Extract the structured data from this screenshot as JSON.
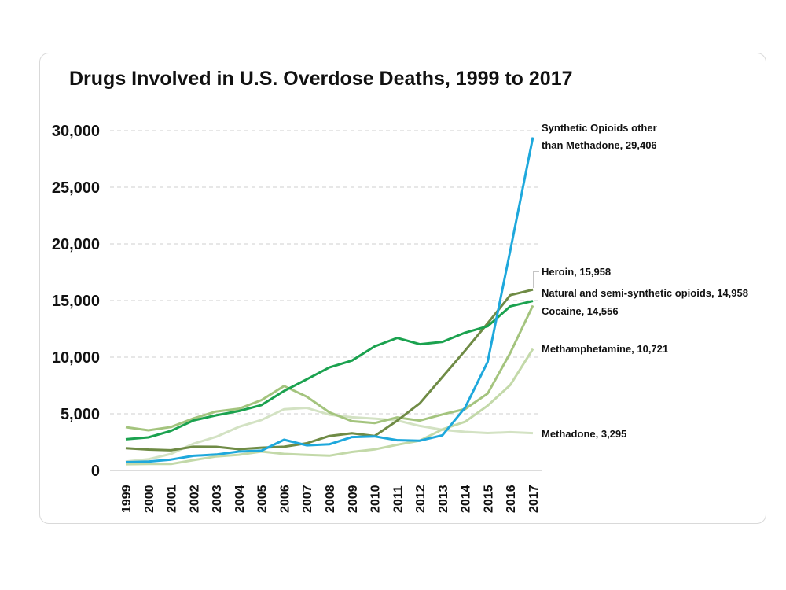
{
  "chart_data": {
    "type": "line",
    "title": "Drugs Involved in U.S. Overdose Deaths, 1999 to 2017",
    "xlabel": "",
    "ylabel": "",
    "ylim": [
      0,
      30000
    ],
    "yticks": [
      0,
      5000,
      10000,
      15000,
      20000,
      25000,
      30000
    ],
    "ytick_labels": [
      "0",
      "5,000",
      "10,000",
      "15,000",
      "20,000",
      "25,000",
      "30,000"
    ],
    "grid": "horizontal dashed",
    "x": [
      1999,
      2000,
      2001,
      2002,
      2003,
      2004,
      2005,
      2006,
      2007,
      2008,
      2009,
      2010,
      2011,
      2012,
      2013,
      2014,
      2015,
      2016,
      2017
    ],
    "series": [
      {
        "name": "Synthetic Opioids other than Methadone",
        "label_lines": [
          "Synthetic Opioids other",
          "than Methadone, 29,406"
        ],
        "color": "#1ea8dc",
        "values": [
          730,
          782,
          957,
          1295,
          1400,
          1664,
          1742,
          2707,
          2213,
          2306,
          2946,
          3007,
          2666,
          2628,
          3105,
          5544,
          9580,
          19413,
          29406
        ]
      },
      {
        "name": "Heroin",
        "label_lines": [
          "Heroin, 15,958"
        ],
        "color": "#6f8b45",
        "values": [
          1960,
          1842,
          1779,
          2089,
          2080,
          1878,
          2009,
          2088,
          2399,
          3041,
          3278,
          3036,
          4397,
          5925,
          8257,
          10574,
          12989,
          15469,
          15958
        ]
      },
      {
        "name": "Natural and semi-synthetic opioids",
        "label_lines": [
          "Natural and semi-synthetic opioids, 14,958"
        ],
        "color": "#1ba24f",
        "values": [
          2749,
          2917,
          3495,
          4416,
          4867,
          5242,
          5773,
          7017,
          8040,
          9091,
          9704,
          10943,
          11693,
          11140,
          11346,
          12159,
          12727,
          14487,
          14958
        ]
      },
      {
        "name": "Cocaine",
        "label_lines": [
          "Cocaine, 14,556"
        ],
        "color": "#a4c47e",
        "values": [
          3822,
          3544,
          3833,
          4599,
          5199,
          5443,
          6208,
          7448,
          6512,
          5129,
          4350,
          4183,
          4681,
          4404,
          4944,
          5415,
          6784,
          10375,
          14556
        ]
      },
      {
        "name": "Methamphetamine",
        "label_lines": [
          "Methamphetamine, 10,721"
        ],
        "color": "#c3d9a9",
        "values": [
          547,
          578,
          571,
          910,
          1236,
          1385,
          1667,
          1461,
          1378,
          1302,
          1632,
          1854,
          2266,
          2635,
          3627,
          4298,
          5716,
          7542,
          10721
        ]
      },
      {
        "name": "Methadone",
        "label_lines": [
          "Methadone, 3,295"
        ],
        "color": "#d3e2c3",
        "values": [
          784,
          988,
          1456,
          2358,
          2972,
          3845,
          4460,
          5406,
          5518,
          4924,
          4696,
          4577,
          4418,
          3932,
          3591,
          3400,
          3301,
          3373,
          3295
        ]
      }
    ]
  }
}
